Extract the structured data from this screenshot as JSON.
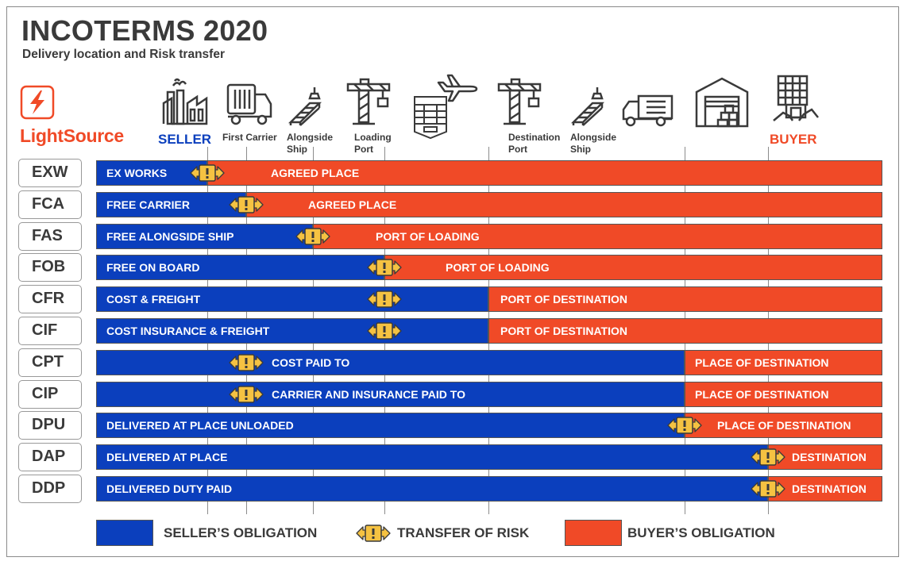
{
  "header": {
    "title": "INCOTERMS 2020",
    "subtitle": "Delivery location and Risk transfer"
  },
  "brand": {
    "name": "LightSource",
    "color": "#f04a27"
  },
  "colors": {
    "seller": "#0b3fbd",
    "buyer": "#f04a27",
    "risk": "#f5c242"
  },
  "stages": {
    "seller": "SELLER",
    "first_carrier": "First Carrier",
    "alongside_ship_1": "Alongside",
    "alongside_ship_2": "Ship",
    "loading_port_1": "Loading",
    "loading_port_2": "Port",
    "destination_port_1": "Destination",
    "destination_port_2": "Port",
    "alongside_ship_dest_1": "Alongside",
    "alongside_ship_dest_2": "Ship",
    "buyer": "BUYER"
  },
  "icons": [
    "factory-icon",
    "truck-icon",
    "cargo-stack-icon",
    "loading-crane-icon",
    "cargo-ship-icon",
    "airplane-icon",
    "destination-crane-icon",
    "cargo-stack-icon",
    "delivery-truck-icon",
    "warehouse-icon",
    "buyer-building-icon"
  ],
  "rules": [
    {
      "code": "EXW",
      "seller_label": "EX WORKS",
      "buyer_label": "AGREED PLACE"
    },
    {
      "code": "FCA",
      "seller_label": "FREE CARRIER",
      "buyer_label": "AGREED PLACE"
    },
    {
      "code": "FAS",
      "seller_label": "FREE ALONGSIDE SHIP",
      "buyer_label": "PORT OF LOADING"
    },
    {
      "code": "FOB",
      "seller_label": "FREE ON BOARD",
      "buyer_label": "PORT OF LOADING"
    },
    {
      "code": "CFR",
      "seller_label": "COST & FREIGHT",
      "buyer_label": "PORT OF DESTINATION"
    },
    {
      "code": "CIF",
      "seller_label": "COST INSURANCE & FREIGHT",
      "buyer_label": "PORT OF DESTINATION"
    },
    {
      "code": "CPT",
      "seller_label": "COST PAID TO",
      "buyer_label": "PLACE OF DESTINATION"
    },
    {
      "code": "CIP",
      "seller_label": "CARRIER AND INSURANCE PAID TO",
      "buyer_label": "PLACE OF DESTINATION"
    },
    {
      "code": "DPU",
      "seller_label": "DELIVERED AT PLACE UNLOADED",
      "buyer_label": "PLACE OF DESTINATION"
    },
    {
      "code": "DAP",
      "seller_label": "DELIVERED AT PLACE",
      "buyer_label": "DESTINATION"
    },
    {
      "code": "DDP",
      "seller_label": "DELIVERED DUTY PAID",
      "buyer_label": "DESTINATION"
    }
  ],
  "legend": {
    "seller": "SELLER’S OBLIGATION",
    "risk": "TRANSFER OF RISK",
    "buyer": "BUYER’S OBLIGATION"
  }
}
